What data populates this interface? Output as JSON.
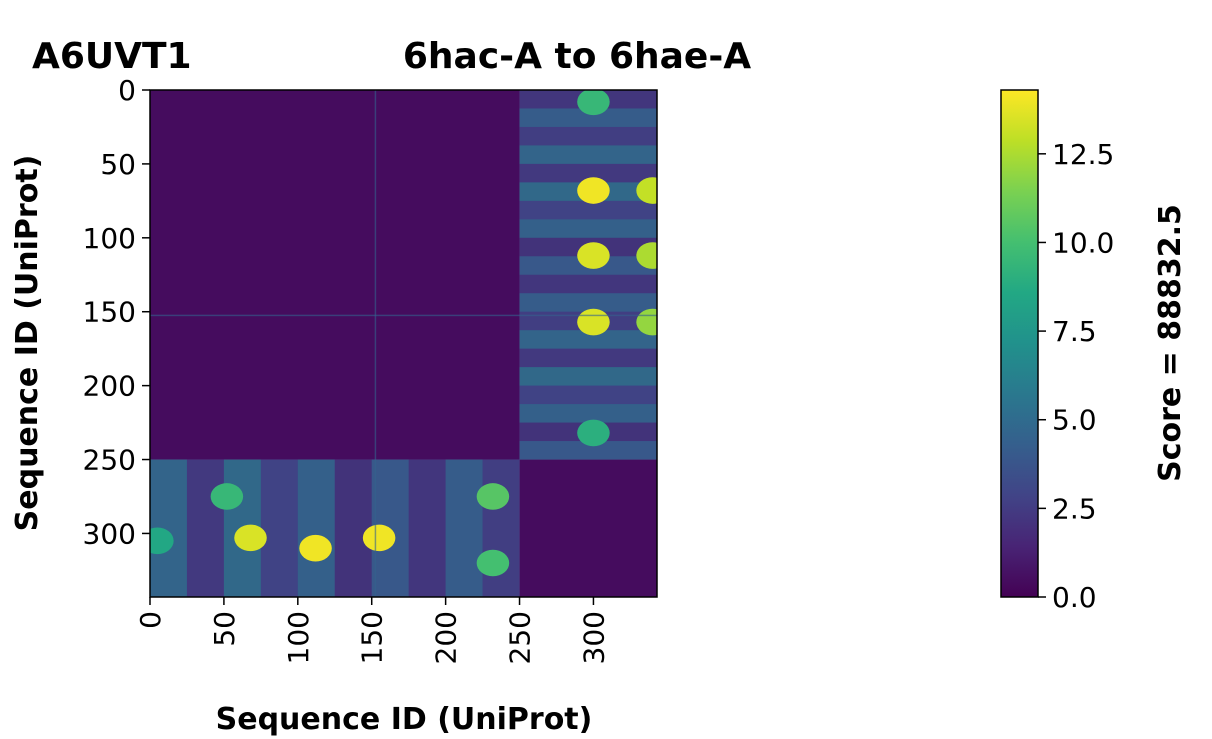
{
  "chart_data": {
    "type": "heatmap",
    "title_left": "A6UVT1",
    "title_center": "6hac-A to 6hae-A",
    "xlabel": "Sequence ID (UniProt)",
    "ylabel": "Sequence ID (UniProt)",
    "n": 343,
    "domain_split": 250,
    "xticks": [
      0,
      50,
      100,
      150,
      200,
      250,
      300
    ],
    "yticks": [
      0,
      50,
      100,
      150,
      200,
      250,
      300
    ],
    "xtick_labels": [
      "0",
      "50",
      "100",
      "150",
      "200",
      "250",
      "300"
    ],
    "ytick_labels": [
      "0",
      "50",
      "100",
      "150",
      "200",
      "250",
      "300"
    ],
    "colorbar": {
      "label": "Score = 88832.5",
      "min": 0.0,
      "max": 14.3,
      "ticks": [
        0.0,
        2.5,
        5.0,
        7.5,
        10.0,
        12.5
      ],
      "tick_labels": [
        "0.0",
        "2.5",
        "5.0",
        "7.5",
        "10.0",
        "12.5"
      ],
      "colormap": "viridis"
    },
    "hotspots": [
      {
        "x": 300,
        "y": 68,
        "value": 14.0
      },
      {
        "x": 300,
        "y": 112,
        "value": 13.5
      },
      {
        "x": 300,
        "y": 157,
        "value": 13.5
      },
      {
        "x": 340,
        "y": 68,
        "value": 13.0
      },
      {
        "x": 340,
        "y": 112,
        "value": 12.5
      },
      {
        "x": 340,
        "y": 157,
        "value": 12.0
      },
      {
        "x": 300,
        "y": 8,
        "value": 9.5
      },
      {
        "x": 300,
        "y": 232,
        "value": 9.0
      },
      {
        "x": 68,
        "y": 303,
        "value": 13.5
      },
      {
        "x": 112,
        "y": 310,
        "value": 14.0
      },
      {
        "x": 155,
        "y": 303,
        "value": 14.0
      },
      {
        "x": 52,
        "y": 275,
        "value": 9.5
      },
      {
        "x": 232,
        "y": 275,
        "value": 10.5
      },
      {
        "x": 232,
        "y": 320,
        "value": 10.0
      },
      {
        "x": 5,
        "y": 305,
        "value": 8.5
      }
    ]
  }
}
